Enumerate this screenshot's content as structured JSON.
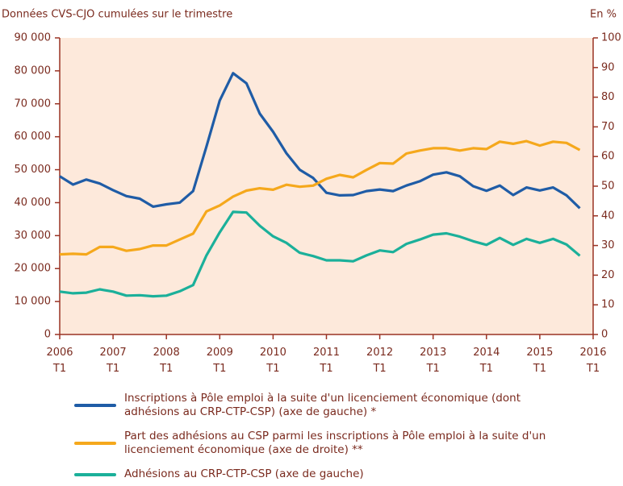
{
  "chart_data": {
    "type": "line",
    "title": "Données CVS-CJO cumulées sur le trimestre",
    "y2_label": "En %",
    "categories": [
      "2006 T1",
      null,
      null,
      null,
      "2007 T1",
      null,
      null,
      null,
      "2008 T1",
      null,
      null,
      null,
      "2009 T1",
      null,
      null,
      null,
      "2010 T1",
      null,
      null,
      null,
      "2011 T1",
      null,
      null,
      null,
      "2012 T1",
      null,
      null,
      null,
      "2013 T1",
      null,
      null,
      null,
      "2014 T1",
      null,
      null,
      null,
      "2015 T1",
      null,
      null,
      null,
      "2016 T1"
    ],
    "series": [
      {
        "name": "Inscriptions à Pôle emploi à la suite d'un licenciement économique (dont adhésions au CRP-CTP-CSP) (axe de gauche) *",
        "color": "#1f5ca6",
        "axis": "y",
        "values": [
          48000,
          45500,
          47000,
          45800,
          43800,
          42000,
          41200,
          38800,
          39500,
          40000,
          43500,
          57000,
          71000,
          79300,
          76200,
          67000,
          61500,
          55000,
          50000,
          47500,
          43000,
          42200,
          42300,
          43500,
          44000,
          43500,
          45200,
          46500,
          48500,
          49200,
          48000,
          45000,
          43600,
          45200,
          42300,
          44600,
          43700,
          44600,
          42200,
          38300,
          null
        ]
      },
      {
        "name": "Part des adhésions au CSP parmi les inscriptions à Pôle emploi à la suite d'un licenciement économique (axe de droite) **",
        "color": "#f5a81c",
        "axis": "y2",
        "values": [
          27,
          27.2,
          27,
          29.5,
          29.5,
          28.2,
          28.8,
          30,
          30,
          32,
          34,
          41.5,
          43.5,
          46.5,
          48.5,
          49.3,
          48.8,
          50.5,
          49.8,
          50.2,
          52.5,
          53.8,
          53,
          55.5,
          57.8,
          57.6,
          61,
          62,
          62.8,
          62.8,
          62,
          62.8,
          62.5,
          65,
          64.3,
          65.2,
          63.7,
          65,
          64.6,
          62.2,
          null
        ]
      },
      {
        "name": "Adhésions au CRP-CTP-CSP (axe de gauche)",
        "color": "#1bb09a",
        "axis": "y",
        "values": [
          13000,
          12500,
          12700,
          13700,
          13000,
          11800,
          11900,
          11600,
          11800,
          13100,
          15000,
          24000,
          31000,
          37200,
          37000,
          33000,
          29800,
          27800,
          24800,
          23800,
          22500,
          22500,
          22200,
          24000,
          25500,
          25000,
          27500,
          28800,
          30300,
          30700,
          29700,
          28300,
          27200,
          29300,
          27200,
          29000,
          27800,
          29000,
          27300,
          23900,
          null
        ]
      }
    ],
    "ylim": [
      0,
      90000
    ],
    "yticks": [
      0,
      {
        "value": 10000,
        "label": "10 000"
      },
      {
        "value": 20000,
        "label": "20 000"
      },
      {
        "value": 30000,
        "label": "30 000"
      },
      {
        "value": 40000,
        "label": "40 000"
      },
      {
        "value": 50000,
        "label": "50 000"
      },
      {
        "value": 60000,
        "label": "60 000"
      },
      {
        "value": 70000,
        "label": "70 000"
      },
      {
        "value": 80000,
        "label": "80 000"
      },
      {
        "value": 90000,
        "label": "90 000"
      }
    ],
    "y2lim": [
      0,
      100
    ],
    "y2ticks": [
      0,
      10,
      20,
      30,
      40,
      50,
      60,
      70,
      80,
      90,
      100
    ],
    "grid": false,
    "plot_background": "#fde9db"
  }
}
